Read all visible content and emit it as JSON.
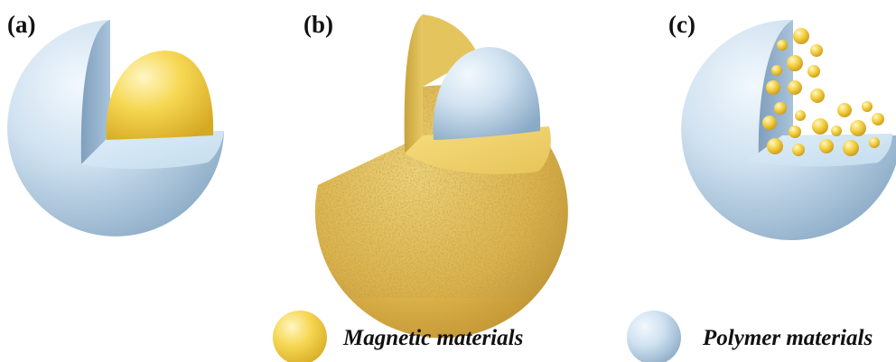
{
  "panels": [
    {
      "label": "(a)",
      "structure": "core-shell"
    },
    {
      "label": "(b)",
      "structure": "shell-core"
    },
    {
      "label": "(c)",
      "structure": "embedded-particles"
    }
  ],
  "legend": {
    "magnetic": {
      "label": "Magnetic materials",
      "color": "#f2cf45"
    },
    "polymer": {
      "label": "Polymer materials",
      "color": "#c9e2f3"
    }
  }
}
